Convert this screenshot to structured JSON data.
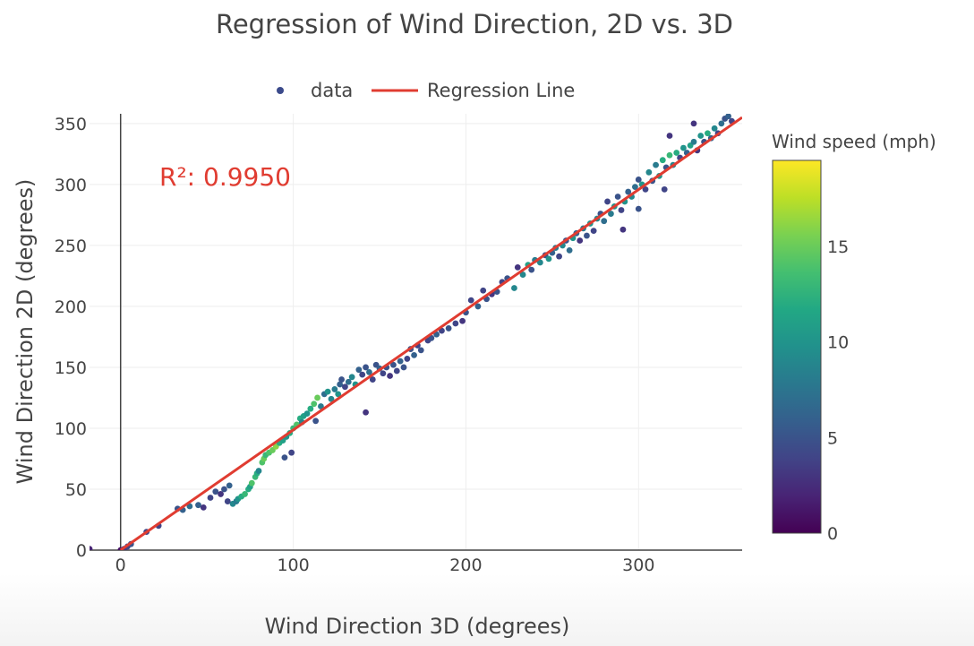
{
  "chart_data": {
    "type": "scatter",
    "title": "Regression of Wind Direction, 2D vs. 3D",
    "xlabel": "Wind Direction 3D (degrees)",
    "ylabel": "Wind Direction 2D (degrees)",
    "xlim": [
      -18,
      360
    ],
    "ylim": [
      0,
      358
    ],
    "x_ticks": [
      0,
      100,
      200,
      300
    ],
    "y_ticks": [
      0,
      50,
      100,
      150,
      200,
      250,
      300,
      350
    ],
    "grid": true,
    "legend": {
      "placement": "top-center",
      "entries": [
        "data",
        "Regression Line"
      ]
    },
    "annotation": "R²: 0.9950",
    "series": [
      {
        "name": "data",
        "type": "scatter",
        "color_by": "Wind speed (mph)",
        "points": [
          [
            -18,
            1,
            2
          ],
          [
            0,
            0,
            1
          ],
          [
            2,
            1,
            3
          ],
          [
            4,
            3,
            4
          ],
          [
            6,
            5,
            5
          ],
          [
            15,
            15,
            4
          ],
          [
            22,
            20,
            4
          ],
          [
            33,
            34,
            5
          ],
          [
            36,
            33,
            6
          ],
          [
            40,
            36,
            7
          ],
          [
            45,
            37,
            6
          ],
          [
            48,
            35,
            3
          ],
          [
            52,
            43,
            4
          ],
          [
            55,
            48,
            5
          ],
          [
            58,
            46,
            3
          ],
          [
            60,
            50,
            5
          ],
          [
            62,
            40,
            4
          ],
          [
            63,
            53,
            6
          ],
          [
            65,
            38,
            9
          ],
          [
            67,
            40,
            8
          ],
          [
            68,
            42,
            10
          ],
          [
            70,
            44,
            12
          ],
          [
            72,
            46,
            13
          ],
          [
            74,
            50,
            12
          ],
          [
            75,
            52,
            11
          ],
          [
            76,
            55,
            14
          ],
          [
            78,
            60,
            13
          ],
          [
            79,
            63,
            12
          ],
          [
            80,
            65,
            9
          ],
          [
            82,
            72,
            14
          ],
          [
            83,
            75,
            15
          ],
          [
            84,
            78,
            13
          ],
          [
            86,
            80,
            14
          ],
          [
            88,
            82,
            15
          ],
          [
            90,
            85,
            16
          ],
          [
            92,
            88,
            12
          ],
          [
            94,
            90,
            11
          ],
          [
            95,
            76,
            5
          ],
          [
            96,
            93,
            10
          ],
          [
            98,
            96,
            12
          ],
          [
            99,
            80,
            4
          ],
          [
            100,
            100,
            13
          ],
          [
            102,
            103,
            14
          ],
          [
            104,
            108,
            12
          ],
          [
            105,
            105,
            9
          ],
          [
            106,
            110,
            11
          ],
          [
            108,
            112,
            10
          ],
          [
            110,
            116,
            12
          ],
          [
            112,
            120,
            14
          ],
          [
            113,
            106,
            5
          ],
          [
            114,
            125,
            15
          ],
          [
            116,
            118,
            8
          ],
          [
            118,
            128,
            7
          ],
          [
            120,
            130,
            10
          ],
          [
            122,
            124,
            9
          ],
          [
            124,
            132,
            8
          ],
          [
            126,
            128,
            10
          ],
          [
            127,
            136,
            6
          ],
          [
            128,
            140,
            5
          ],
          [
            130,
            134,
            4
          ],
          [
            132,
            138,
            7
          ],
          [
            134,
            142,
            9
          ],
          [
            136,
            136,
            10
          ],
          [
            138,
            148,
            6
          ],
          [
            140,
            144,
            4
          ],
          [
            142,
            150,
            5
          ],
          [
            144,
            146,
            7
          ],
          [
            146,
            140,
            4
          ],
          [
            148,
            152,
            5
          ],
          [
            150,
            149,
            6
          ],
          [
            152,
            145,
            4
          ],
          [
            154,
            150,
            5
          ],
          [
            156,
            143,
            3
          ],
          [
            158,
            152,
            5
          ],
          [
            160,
            147,
            4
          ],
          [
            142,
            113,
            3
          ],
          [
            162,
            155,
            6
          ],
          [
            164,
            150,
            5
          ],
          [
            166,
            157,
            4
          ],
          [
            168,
            165,
            5
          ],
          [
            170,
            160,
            6
          ],
          [
            172,
            168,
            4
          ],
          [
            174,
            164,
            5
          ],
          [
            178,
            172,
            4
          ],
          [
            180,
            174,
            5
          ],
          [
            183,
            177,
            6
          ],
          [
            186,
            180,
            4
          ],
          [
            190,
            182,
            5
          ],
          [
            194,
            186,
            4
          ],
          [
            198,
            188,
            3
          ],
          [
            200,
            195,
            5
          ],
          [
            203,
            205,
            4
          ],
          [
            207,
            200,
            6
          ],
          [
            210,
            213,
            4
          ],
          [
            212,
            206,
            5
          ],
          [
            215,
            210,
            3
          ],
          [
            218,
            212,
            5
          ],
          [
            221,
            220,
            4
          ],
          [
            224,
            223,
            5
          ],
          [
            228,
            215,
            9
          ],
          [
            230,
            232,
            3
          ],
          [
            233,
            226,
            9
          ],
          [
            236,
            234,
            11
          ],
          [
            238,
            230,
            5
          ],
          [
            240,
            238,
            8
          ],
          [
            243,
            236,
            9
          ],
          [
            246,
            242,
            5
          ],
          [
            248,
            239,
            10
          ],
          [
            250,
            244,
            6
          ],
          [
            252,
            248,
            8
          ],
          [
            254,
            241,
            4
          ],
          [
            256,
            250,
            9
          ],
          [
            258,
            254,
            5
          ],
          [
            260,
            246,
            7
          ],
          [
            262,
            256,
            10
          ],
          [
            264,
            260,
            6
          ],
          [
            266,
            254,
            3
          ],
          [
            268,
            264,
            8
          ],
          [
            270,
            258,
            5
          ],
          [
            272,
            268,
            10
          ],
          [
            274,
            262,
            4
          ],
          [
            276,
            272,
            9
          ],
          [
            278,
            276,
            5
          ],
          [
            280,
            270,
            7
          ],
          [
            282,
            286,
            4
          ],
          [
            284,
            276,
            8
          ],
          [
            286,
            282,
            10
          ],
          [
            288,
            290,
            5
          ],
          [
            290,
            279,
            4
          ],
          [
            291,
            263,
            3
          ],
          [
            292,
            286,
            10
          ],
          [
            294,
            294,
            6
          ],
          [
            296,
            290,
            9
          ],
          [
            298,
            298,
            7
          ],
          [
            300,
            304,
            5
          ],
          [
            302,
            300,
            10
          ],
          [
            304,
            296,
            4
          ],
          [
            306,
            310,
            9
          ],
          [
            308,
            303,
            5
          ],
          [
            310,
            316,
            8
          ],
          [
            312,
            307,
            10
          ],
          [
            314,
            320,
            12
          ],
          [
            316,
            314,
            5
          ],
          [
            318,
            324,
            13
          ],
          [
            320,
            316,
            9
          ],
          [
            322,
            326,
            12
          ],
          [
            324,
            322,
            4
          ],
          [
            326,
            330,
            10
          ],
          [
            328,
            326,
            6
          ],
          [
            330,
            332,
            11
          ],
          [
            332,
            335,
            8
          ],
          [
            334,
            328,
            3
          ],
          [
            336,
            340,
            10
          ],
          [
            338,
            335,
            5
          ],
          [
            340,
            342,
            12
          ],
          [
            342,
            338,
            6
          ],
          [
            344,
            346,
            9
          ],
          [
            346,
            342,
            4
          ],
          [
            348,
            350,
            7
          ],
          [
            350,
            354,
            5
          ],
          [
            352,
            356,
            6
          ],
          [
            354,
            352,
            4
          ],
          [
            332,
            350,
            3
          ],
          [
            315,
            296,
            4
          ],
          [
            300,
            280,
            5
          ],
          [
            318,
            340,
            3
          ]
        ]
      },
      {
        "name": "Regression Line",
        "type": "line",
        "color": "#e03c31",
        "x": [
          0,
          360
        ],
        "y": [
          0,
          355
        ]
      }
    ],
    "colorbar": {
      "title": "Wind speed (mph)",
      "range": [
        0,
        19.5
      ],
      "ticks": [
        0,
        5,
        10,
        15
      ],
      "colorscale": "viridis"
    }
  },
  "colors": {
    "regression": "#e03c31",
    "annotation": "#e03c31",
    "text": "#444444",
    "grid": "#eeeeee"
  }
}
